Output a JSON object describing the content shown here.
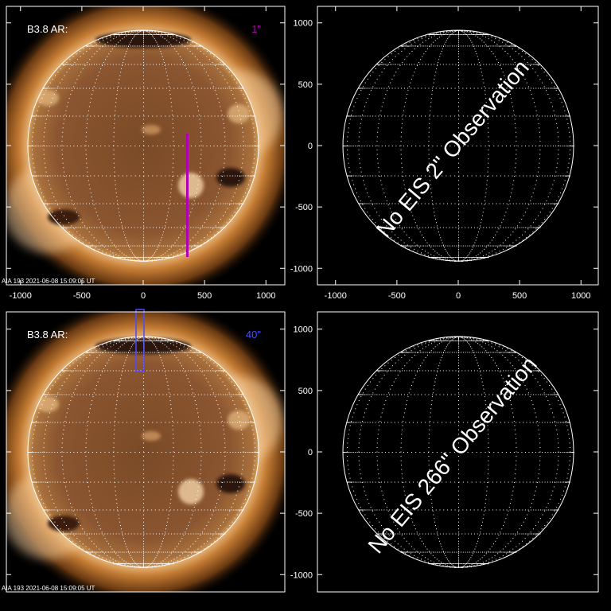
{
  "panels": [
    {
      "id": "top-left",
      "type": "image",
      "label": "B3.8 AR:",
      "slit_label": "1\"",
      "slit_color": "#b000b0",
      "caption": "AIA 193   2021-06-08 15:09:05 UT",
      "x_ticks": [
        "-1000",
        "-500",
        "0",
        "500",
        "1000"
      ],
      "y_ticks": [
        "1000",
        "500",
        "0",
        "-500",
        "-1000"
      ]
    },
    {
      "id": "top-right",
      "type": "empty",
      "message": "No EIS 2\" Observation",
      "x_ticks": [
        "-1000",
        "-500",
        "0",
        "500",
        "1000"
      ],
      "y_ticks": [
        "1000",
        "500",
        "0",
        "-500",
        "-1000"
      ]
    },
    {
      "id": "bottom-left",
      "type": "image",
      "label": "B3.8 AR:",
      "slit_label": "40\"",
      "slit_color": "#4a4aff",
      "caption": "AIA 193   2021-06-08 15:09:05 UT",
      "y_ticks": [
        "1000",
        "500",
        "0",
        "-500",
        "-1000"
      ]
    },
    {
      "id": "bottom-right",
      "type": "empty",
      "message": "No EIS 266\" Observation",
      "y_ticks": [
        "1000",
        "500",
        "0",
        "-500",
        "-1000"
      ]
    }
  ]
}
